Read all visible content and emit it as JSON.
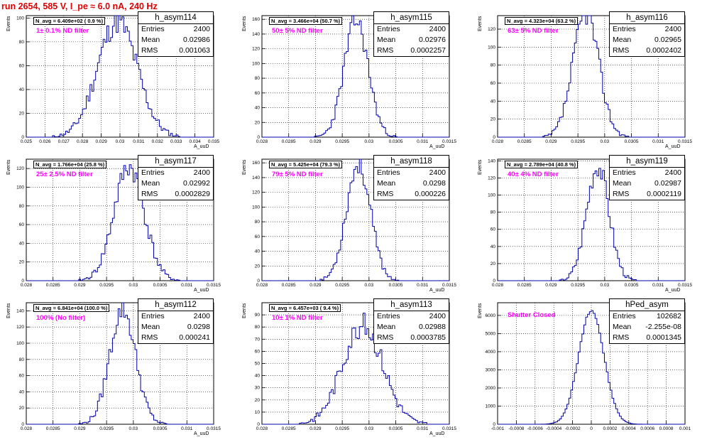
{
  "run_title": "run 2654,   585 V, I_pe ≈ 6.0 nA, 240 Hz",
  "colors": {
    "title": "#e00000",
    "filter_text": "#ff00ff",
    "hist_line": "#0000aa",
    "grid": "#000000"
  },
  "chart_data": [
    {
      "type": "histogram",
      "name": "h_asym114",
      "stats": {
        "entries_label": "Entries",
        "entries": "2400",
        "mean_label": "Mean",
        "mean": "0.02986",
        "rms_label": "RMS",
        "rms": "0.001063"
      },
      "navg": "N_avg = 6.409e+02 ( 0.9 %)",
      "filter": "1± 0.1% ND filter",
      "ylabel": "Events",
      "xlabel": "A_uuD",
      "xlim": [
        0.025,
        0.035
      ],
      "ylim": [
        0,
        102
      ],
      "xticks": [
        "0.025",
        "0.026",
        "0.027",
        "0.028",
        "0.029",
        "0.03",
        "0.031",
        "0.032",
        "0.033",
        "0.034",
        "0.035"
      ],
      "yticks": [
        "0",
        "20",
        "40",
        "60",
        "80",
        "100"
      ],
      "mu": 0.02986,
      "sigma": 0.001063,
      "peak": 97,
      "seed": 11
    },
    {
      "type": "histogram",
      "name": "h_asym115",
      "stats": {
        "entries_label": "Entries",
        "entries": "2400",
        "mean_label": "Mean",
        "mean": "0.02976",
        "rms_label": "RMS",
        "rms": "0.0002257"
      },
      "navg": "N_avg = 3.466e+04 (50.7 %)",
      "filter": "50± 5% ND filter",
      "ylabel": "Events",
      "xlabel": "A_uuD",
      "xlim": [
        0.028,
        0.0315
      ],
      "ylim": [
        0,
        165
      ],
      "xticks": [
        "0.028",
        "0.0285",
        "0.029",
        "0.0295",
        "0.03",
        "0.0305",
        "0.031",
        "0.0315"
      ],
      "yticks": [
        "0",
        "20",
        "40",
        "60",
        "80",
        "100",
        "120",
        "140",
        "160"
      ],
      "mu": 0.02976,
      "sigma": 0.0002257,
      "peak": 158,
      "seed": 23
    },
    {
      "type": "histogram",
      "name": "h_asym116",
      "stats": {
        "entries_label": "Entries",
        "entries": "2400",
        "mean_label": "Mean",
        "mean": "0.02965",
        "rms_label": "RMS",
        "rms": "0.0002402"
      },
      "navg": "N_avg = 4.323e+04 (63.2 %)",
      "filter": "63± 5% ND filter",
      "ylabel": "Events",
      "xlabel": "A_uuD",
      "xlim": [
        0.028,
        0.0315
      ],
      "ylim": [
        0,
        135
      ],
      "xticks": [
        "0.028",
        "0.0285",
        "0.029",
        "0.0295",
        "0.03",
        "0.0305",
        "0.031",
        "0.0315"
      ],
      "yticks": [
        "0",
        "20",
        "40",
        "60",
        "80",
        "100",
        "120"
      ],
      "mu": 0.02965,
      "sigma": 0.0002402,
      "peak": 138,
      "seed": 37
    },
    {
      "type": "histogram",
      "name": "h_asym117",
      "stats": {
        "entries_label": "Entries",
        "entries": "2400",
        "mean_label": "Mean",
        "mean": "0.02992",
        "rms_label": "RMS",
        "rms": "0.0002829"
      },
      "navg": "N_avg = 1.766e+04 (25.8 %)",
      "filter": "25± 2.5% ND filter",
      "ylabel": "Events",
      "xlabel": "A_uuD",
      "xlim": [
        0.028,
        0.0315
      ],
      "ylim": [
        0,
        130
      ],
      "xticks": [
        "0.028",
        "0.0285",
        "0.029",
        "0.0295",
        "0.03",
        "0.0305",
        "0.031",
        "0.0315"
      ],
      "yticks": [
        "0",
        "20",
        "40",
        "60",
        "80",
        "100",
        "120"
      ],
      "mu": 0.02992,
      "sigma": 0.0002829,
      "peak": 122,
      "seed": 41
    },
    {
      "type": "histogram",
      "name": "h_asym118",
      "stats": {
        "entries_label": "Entries",
        "entries": "2400",
        "mean_label": "Mean",
        "mean": "0.0298",
        "rms_label": "RMS",
        "rms": "0.000226"
      },
      "navg": "N_avg = 5.425e+04 (79.3 %)",
      "filter": "79± 5% ND filter",
      "ylabel": "Events",
      "xlabel": "A_uuD",
      "xlim": [
        0.028,
        0.0315
      ],
      "ylim": [
        0,
        165
      ],
      "xticks": [
        "0.028",
        "0.0285",
        "0.029",
        "0.0295",
        "0.03",
        "0.0305",
        "0.031",
        "0.0315"
      ],
      "yticks": [
        "0",
        "20",
        "40",
        "60",
        "80",
        "100",
        "120",
        "140",
        "160"
      ],
      "mu": 0.0298,
      "sigma": 0.000226,
      "peak": 158,
      "seed": 53
    },
    {
      "type": "histogram",
      "name": "h_asym119",
      "stats": {
        "entries_label": "Entries",
        "entries": "2400",
        "mean_label": "Mean",
        "mean": "0.02987",
        "rms_label": "RMS",
        "rms": "0.0002119"
      },
      "navg": "N_avg = 2.789e+04 (40.8 %)",
      "filter": "40± 4% ND filter",
      "ylabel": "Events",
      "xlabel": "A_uuD",
      "xlim": [
        0.028,
        0.0315
      ],
      "ylim": [
        0,
        142
      ],
      "xticks": [
        "0.028",
        "0.0285",
        "0.029",
        "0.0295",
        "0.03",
        "0.0305",
        "0.031",
        "0.0315"
      ],
      "yticks": [
        "0",
        "20",
        "40",
        "60",
        "80",
        "100",
        "120",
        "140"
      ],
      "mu": 0.02987,
      "sigma": 0.0002119,
      "peak": 135,
      "seed": 67
    },
    {
      "type": "histogram",
      "name": "h_asym112",
      "stats": {
        "entries_label": "Entries",
        "entries": "2400",
        "mean_label": "Mean",
        "mean": "0.0298",
        "rms_label": "RMS",
        "rms": "0.000241"
      },
      "navg": "N_avg = 6.841e+04 (100.0 %)",
      "filter": "100% (No filter)",
      "ylabel": "Events",
      "xlabel": "A_uuD",
      "xlim": [
        0.028,
        0.0315
      ],
      "ylim": [
        0,
        150
      ],
      "xticks": [
        "0.028",
        "0.0285",
        "0.029",
        "0.0295",
        "0.03",
        "0.0305",
        "0.031",
        "0.0315"
      ],
      "yticks": [
        "0",
        "20",
        "40",
        "60",
        "80",
        "100",
        "120",
        "140"
      ],
      "mu": 0.0298,
      "sigma": 0.000241,
      "peak": 142,
      "seed": 79
    },
    {
      "type": "histogram",
      "name": "h_asym113",
      "stats": {
        "entries_label": "Entries",
        "entries": "2400",
        "mean_label": "Mean",
        "mean": "0.02988",
        "rms_label": "RMS",
        "rms": "0.0003785"
      },
      "navg": "N_avg = 6.457e+03 ( 9.4 %)",
      "filter": "10± 1% ND filter",
      "ylabel": "Events",
      "xlabel": "A_uuD",
      "xlim": [
        0.028,
        0.0315
      ],
      "ylim": [
        0,
        100
      ],
      "xticks": [
        "0.028",
        "0.0285",
        "0.029",
        "0.0295",
        "0.03",
        "0.0305",
        "0.031",
        "0.0315"
      ],
      "yticks": [
        "0",
        "10",
        "20",
        "30",
        "40",
        "50",
        "60",
        "70",
        "80",
        "90"
      ],
      "mu": 0.02988,
      "sigma": 0.0003785,
      "peak": 82,
      "seed": 83
    },
    {
      "type": "histogram",
      "name": "hPed_asym",
      "stats": {
        "entries_label": "Entries",
        "entries": "102682",
        "mean_label": "Mean",
        "mean": "-2.255e-08",
        "rms_label": "RMS",
        "rms": "0.0001345"
      },
      "navg": "",
      "filter": "Shutter Closed",
      "ylabel": "Events",
      "xlabel": "",
      "xlim": [
        -0.001,
        0.001
      ],
      "ylim": [
        0,
        6700
      ],
      "xticks": [
        "-0.001",
        "-0.0008",
        "-0.0006",
        "-0.0004",
        "-0.0002",
        "0",
        "0.0002",
        "0.0004",
        "0.0006",
        "0.0008",
        "0.001"
      ],
      "yticks": [
        "0",
        "1000",
        "2000",
        "3000",
        "4000",
        "5000",
        "6000"
      ],
      "mu": 0.0,
      "sigma": 0.0001345,
      "peak": 6300,
      "seed": 97
    }
  ]
}
